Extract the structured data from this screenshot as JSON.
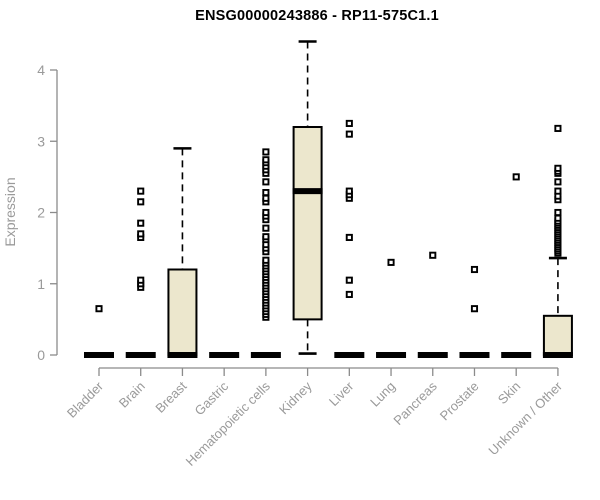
{
  "title": "ENSG00000243886 - RP11-575C1.1",
  "chart_data": {
    "type": "box",
    "title": "ENSG00000243886 - RP11-575C1.1",
    "ylabel": "Expression",
    "xlabel": "",
    "ylim": [
      0,
      4.45
    ],
    "yticks": [
      "0",
      "1",
      "2",
      "3",
      "4"
    ],
    "grid": "off",
    "legend": "none",
    "axis_line_color": "#8b8b8b",
    "axis_text_color": "#9a9a9a",
    "box_fill_color": "#ece7cd",
    "box_stroke_color": "#000000",
    "categories": [
      "Bladder",
      "Brain",
      "Breast",
      "Gastric",
      "Hematopoietic cells",
      "Kidney",
      "Liver",
      "Lung",
      "Pancreas",
      "Prostate",
      "Skin",
      "Unknown / Other"
    ],
    "boxes": [
      {
        "category": "Bladder",
        "q1": 0,
        "median": 0,
        "q3": 0,
        "whisker_low": 0,
        "whisker_high": 0,
        "outliers": [
          0.65
        ]
      },
      {
        "category": "Brain",
        "q1": 0,
        "median": 0,
        "q3": 0,
        "whisker_low": 0,
        "whisker_high": 0,
        "outliers": [
          0.95,
          1.0,
          1.05,
          1.65,
          1.7,
          1.85,
          2.15,
          2.3
        ]
      },
      {
        "category": "Breast",
        "q1": 0,
        "median": 0,
        "q3": 1.2,
        "whisker_low": 0,
        "whisker_high": 2.9,
        "outliers": []
      },
      {
        "category": "Gastric",
        "q1": 0,
        "median": 0,
        "q3": 0,
        "whisker_low": 0,
        "whisker_high": 0,
        "outliers": []
      },
      {
        "category": "Hematopoietic cells",
        "q1": 0,
        "median": 0,
        "q3": 0,
        "whisker_low": 0,
        "whisker_high": 0,
        "outliers": [
          0.53,
          0.57,
          0.61,
          0.65,
          0.69,
          0.73,
          0.77,
          0.81,
          0.85,
          0.89,
          0.93,
          0.97,
          1.01,
          1.05,
          1.09,
          1.13,
          1.17,
          1.21,
          1.25,
          1.29,
          1.33,
          1.45,
          1.5,
          1.55,
          1.62,
          1.66,
          1.78,
          1.9,
          1.95,
          2.0,
          2.15,
          2.2,
          2.28,
          2.43,
          2.55,
          2.6,
          2.65,
          2.7,
          2.74,
          2.85
        ]
      },
      {
        "category": "Kidney",
        "q1": 0.5,
        "median": 2.3,
        "q3": 3.2,
        "whisker_low": 0.02,
        "whisker_high": 4.4,
        "outliers": []
      },
      {
        "category": "Liver",
        "q1": 0,
        "median": 0,
        "q3": 0,
        "whisker_low": 0,
        "whisker_high": 0,
        "outliers": [
          0.85,
          1.05,
          1.65,
          2.2,
          2.25,
          2.3,
          3.1,
          3.25
        ]
      },
      {
        "category": "Lung",
        "q1": 0,
        "median": 0,
        "q3": 0,
        "whisker_low": 0,
        "whisker_high": 0,
        "outliers": [
          1.3
        ]
      },
      {
        "category": "Pancreas",
        "q1": 0,
        "median": 0,
        "q3": 0,
        "whisker_low": 0,
        "whisker_high": 0,
        "outliers": [
          1.4
        ]
      },
      {
        "category": "Prostate",
        "q1": 0,
        "median": 0,
        "q3": 0,
        "whisker_low": 0,
        "whisker_high": 0,
        "outliers": [
          0.65,
          1.2
        ]
      },
      {
        "category": "Skin",
        "q1": 0,
        "median": 0,
        "q3": 0,
        "whisker_low": 0,
        "whisker_high": 0,
        "outliers": [
          2.5
        ]
      },
      {
        "category": "Unknown / Other",
        "q1": 0,
        "median": 0,
        "q3": 0.55,
        "whisker_low": 0,
        "whisker_high": 1.36,
        "outliers": [
          1.43,
          1.46,
          1.49,
          1.52,
          1.55,
          1.58,
          1.61,
          1.64,
          1.67,
          1.7,
          1.73,
          1.76,
          1.79,
          1.82,
          1.85,
          1.88,
          1.92,
          2.0,
          2.18,
          2.23,
          2.3,
          2.43,
          2.55,
          2.58,
          2.62,
          3.18
        ]
      }
    ]
  }
}
